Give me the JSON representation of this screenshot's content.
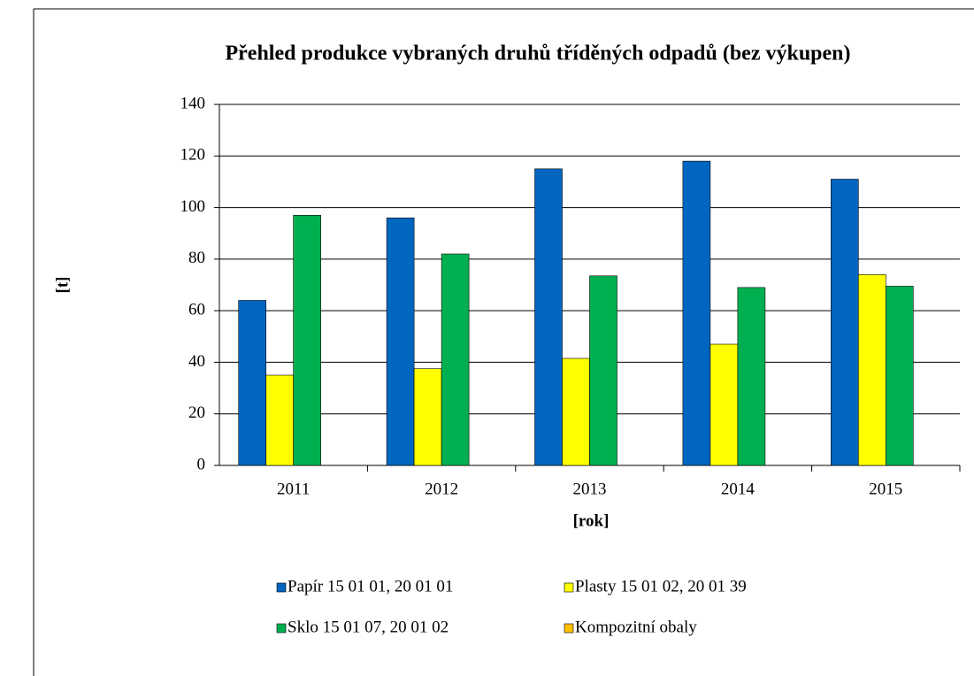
{
  "chart_data": {
    "type": "bar",
    "title": "Přehled produkce vybraných druhů tříděných odpadů (bez výkupen)",
    "x_label": "[rok]",
    "y_label": "[t]",
    "categories": [
      "2011",
      "2012",
      "2013",
      "2014",
      "2015"
    ],
    "series": [
      {
        "name": "Papír 15 01 01, 20 01 01",
        "color": "#0066c0",
        "values": [
          64,
          96,
          115,
          118,
          111
        ]
      },
      {
        "name": "Plasty 15 01 02, 20 01 39",
        "color": "#ffff00",
        "values": [
          35,
          37.5,
          41.5,
          47,
          74
        ]
      },
      {
        "name": "Sklo 15 01 07, 20 01 02",
        "color": "#00b050",
        "values": [
          97,
          82,
          73.5,
          69,
          69.5
        ]
      },
      {
        "name": "Kompozitní obaly",
        "color": "#ffc000",
        "values": [
          0,
          0,
          0,
          0,
          0
        ]
      }
    ],
    "ylim": [
      0,
      140
    ],
    "yticks": [
      0,
      20,
      40,
      60,
      80,
      100,
      120,
      140
    ],
    "grid": true,
    "legend": "bottom"
  }
}
